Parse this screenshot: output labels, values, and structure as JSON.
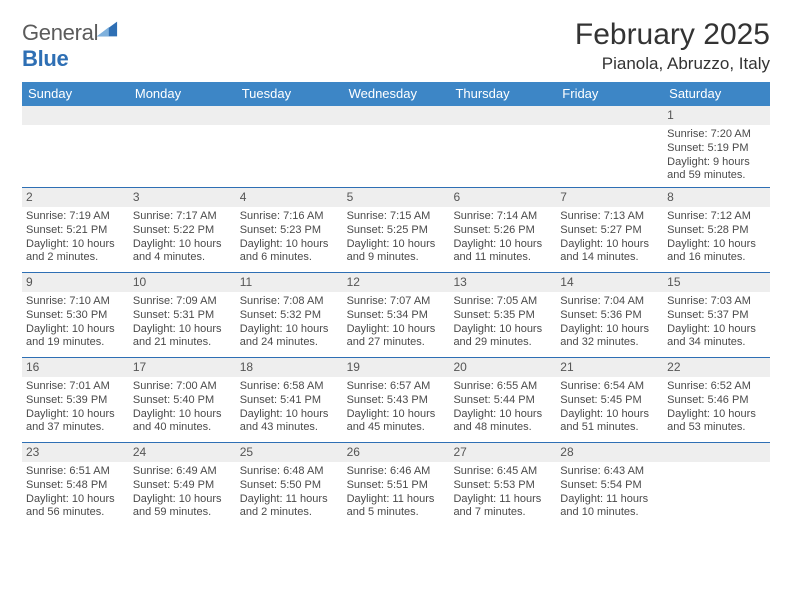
{
  "logo": {
    "general": "General",
    "blue": "Blue"
  },
  "title": "February 2025",
  "location": "Pianola, Abruzzo, Italy",
  "colors": {
    "header_bar": "#3d86c6",
    "week_divider": "#2e6fb4",
    "daynum_bg": "#eeeeee",
    "text": "#333333",
    "logo_blue": "#2e6fb4",
    "logo_grey": "#5b5b5b"
  },
  "dow": [
    "Sunday",
    "Monday",
    "Tuesday",
    "Wednesday",
    "Thursday",
    "Friday",
    "Saturday"
  ],
  "weeks": [
    [
      {
        "n": "",
        "lines": []
      },
      {
        "n": "",
        "lines": []
      },
      {
        "n": "",
        "lines": []
      },
      {
        "n": "",
        "lines": []
      },
      {
        "n": "",
        "lines": []
      },
      {
        "n": "",
        "lines": []
      },
      {
        "n": "1",
        "lines": [
          "Sunrise: 7:20 AM",
          "Sunset: 5:19 PM",
          "Daylight: 9 hours and 59 minutes."
        ]
      }
    ],
    [
      {
        "n": "2",
        "lines": [
          "Sunrise: 7:19 AM",
          "Sunset: 5:21 PM",
          "Daylight: 10 hours and 2 minutes."
        ]
      },
      {
        "n": "3",
        "lines": [
          "Sunrise: 7:17 AM",
          "Sunset: 5:22 PM",
          "Daylight: 10 hours and 4 minutes."
        ]
      },
      {
        "n": "4",
        "lines": [
          "Sunrise: 7:16 AM",
          "Sunset: 5:23 PM",
          "Daylight: 10 hours and 6 minutes."
        ]
      },
      {
        "n": "5",
        "lines": [
          "Sunrise: 7:15 AM",
          "Sunset: 5:25 PM",
          "Daylight: 10 hours and 9 minutes."
        ]
      },
      {
        "n": "6",
        "lines": [
          "Sunrise: 7:14 AM",
          "Sunset: 5:26 PM",
          "Daylight: 10 hours and 11 minutes."
        ]
      },
      {
        "n": "7",
        "lines": [
          "Sunrise: 7:13 AM",
          "Sunset: 5:27 PM",
          "Daylight: 10 hours and 14 minutes."
        ]
      },
      {
        "n": "8",
        "lines": [
          "Sunrise: 7:12 AM",
          "Sunset: 5:28 PM",
          "Daylight: 10 hours and 16 minutes."
        ]
      }
    ],
    [
      {
        "n": "9",
        "lines": [
          "Sunrise: 7:10 AM",
          "Sunset: 5:30 PM",
          "Daylight: 10 hours and 19 minutes."
        ]
      },
      {
        "n": "10",
        "lines": [
          "Sunrise: 7:09 AM",
          "Sunset: 5:31 PM",
          "Daylight: 10 hours and 21 minutes."
        ]
      },
      {
        "n": "11",
        "lines": [
          "Sunrise: 7:08 AM",
          "Sunset: 5:32 PM",
          "Daylight: 10 hours and 24 minutes."
        ]
      },
      {
        "n": "12",
        "lines": [
          "Sunrise: 7:07 AM",
          "Sunset: 5:34 PM",
          "Daylight: 10 hours and 27 minutes."
        ]
      },
      {
        "n": "13",
        "lines": [
          "Sunrise: 7:05 AM",
          "Sunset: 5:35 PM",
          "Daylight: 10 hours and 29 minutes."
        ]
      },
      {
        "n": "14",
        "lines": [
          "Sunrise: 7:04 AM",
          "Sunset: 5:36 PM",
          "Daylight: 10 hours and 32 minutes."
        ]
      },
      {
        "n": "15",
        "lines": [
          "Sunrise: 7:03 AM",
          "Sunset: 5:37 PM",
          "Daylight: 10 hours and 34 minutes."
        ]
      }
    ],
    [
      {
        "n": "16",
        "lines": [
          "Sunrise: 7:01 AM",
          "Sunset: 5:39 PM",
          "Daylight: 10 hours and 37 minutes."
        ]
      },
      {
        "n": "17",
        "lines": [
          "Sunrise: 7:00 AM",
          "Sunset: 5:40 PM",
          "Daylight: 10 hours and 40 minutes."
        ]
      },
      {
        "n": "18",
        "lines": [
          "Sunrise: 6:58 AM",
          "Sunset: 5:41 PM",
          "Daylight: 10 hours and 43 minutes."
        ]
      },
      {
        "n": "19",
        "lines": [
          "Sunrise: 6:57 AM",
          "Sunset: 5:43 PM",
          "Daylight: 10 hours and 45 minutes."
        ]
      },
      {
        "n": "20",
        "lines": [
          "Sunrise: 6:55 AM",
          "Sunset: 5:44 PM",
          "Daylight: 10 hours and 48 minutes."
        ]
      },
      {
        "n": "21",
        "lines": [
          "Sunrise: 6:54 AM",
          "Sunset: 5:45 PM",
          "Daylight: 10 hours and 51 minutes."
        ]
      },
      {
        "n": "22",
        "lines": [
          "Sunrise: 6:52 AM",
          "Sunset: 5:46 PM",
          "Daylight: 10 hours and 53 minutes."
        ]
      }
    ],
    [
      {
        "n": "23",
        "lines": [
          "Sunrise: 6:51 AM",
          "Sunset: 5:48 PM",
          "Daylight: 10 hours and 56 minutes."
        ]
      },
      {
        "n": "24",
        "lines": [
          "Sunrise: 6:49 AM",
          "Sunset: 5:49 PM",
          "Daylight: 10 hours and 59 minutes."
        ]
      },
      {
        "n": "25",
        "lines": [
          "Sunrise: 6:48 AM",
          "Sunset: 5:50 PM",
          "Daylight: 11 hours and 2 minutes."
        ]
      },
      {
        "n": "26",
        "lines": [
          "Sunrise: 6:46 AM",
          "Sunset: 5:51 PM",
          "Daylight: 11 hours and 5 minutes."
        ]
      },
      {
        "n": "27",
        "lines": [
          "Sunrise: 6:45 AM",
          "Sunset: 5:53 PM",
          "Daylight: 11 hours and 7 minutes."
        ]
      },
      {
        "n": "28",
        "lines": [
          "Sunrise: 6:43 AM",
          "Sunset: 5:54 PM",
          "Daylight: 11 hours and 10 minutes."
        ]
      },
      {
        "n": "",
        "lines": []
      }
    ]
  ]
}
